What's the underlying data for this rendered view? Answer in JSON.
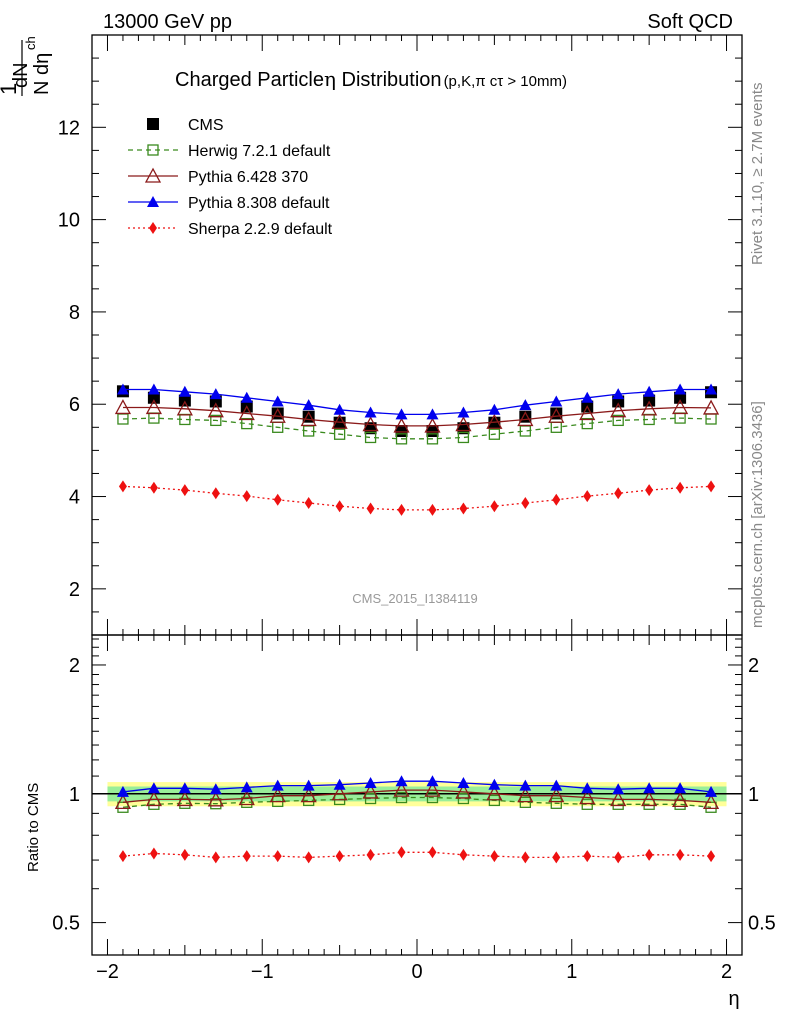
{
  "header": {
    "left": "13000 GeV pp",
    "right": "Soft QCD"
  },
  "side": {
    "rivet": "Rivet 3.1.10, ≥ 2.7M events",
    "mcplots": "mcplots.cern.ch [arXiv:1306.3436]"
  },
  "chart_data": [
    {
      "type": "line",
      "title_main": "Charged Particle",
      "title_eta": "η",
      "title_dist": " Distribution",
      "title_sub": "(p,K,π cτ > 10mm)",
      "ylabel_top": "1",
      "ylabel_dn": "dN",
      "ylabel_ch": "ch",
      "ylabel_bottom": "N dη",
      "xlabel": "η",
      "watermark": "CMS_2015_I1384119",
      "xlim": [
        -2.1,
        2.1
      ],
      "ylim": [
        1.0,
        14.0
      ],
      "yticks": [
        2,
        4,
        6,
        8,
        10,
        12
      ],
      "x": [
        -1.9,
        -1.7,
        -1.5,
        -1.3,
        -1.1,
        -0.9,
        -0.7,
        -0.5,
        -0.3,
        -0.1,
        0.1,
        0.3,
        0.5,
        0.7,
        0.9,
        1.1,
        1.3,
        1.5,
        1.7,
        1.9
      ],
      "series": [
        {
          "name": "CMS",
          "color": "#000000",
          "marker": "square-filled",
          "values": [
            6.28,
            6.14,
            6.08,
            6.06,
            5.95,
            5.8,
            5.73,
            5.6,
            5.48,
            5.42,
            5.42,
            5.48,
            5.6,
            5.73,
            5.8,
            5.95,
            6.06,
            6.08,
            6.14,
            6.26
          ]
        },
        {
          "name": "Herwig 7.2.1 default",
          "color": "#3a8a1e",
          "marker": "square-open",
          "dash": "5,4",
          "values": [
            5.68,
            5.7,
            5.67,
            5.65,
            5.58,
            5.5,
            5.42,
            5.35,
            5.28,
            5.25,
            5.25,
            5.28,
            5.35,
            5.42,
            5.5,
            5.58,
            5.65,
            5.67,
            5.7,
            5.68
          ]
        },
        {
          "name": "Pythia 6.428 370",
          "color": "#8b1a1a",
          "marker": "triangle-open",
          "values": [
            5.93,
            5.93,
            5.9,
            5.86,
            5.8,
            5.74,
            5.67,
            5.61,
            5.56,
            5.53,
            5.53,
            5.56,
            5.61,
            5.67,
            5.74,
            5.8,
            5.86,
            5.9,
            5.93,
            5.92
          ]
        },
        {
          "name": "Pythia 8.308 default",
          "color": "#0000ee",
          "marker": "triangle-filled",
          "values": [
            6.32,
            6.32,
            6.27,
            6.22,
            6.14,
            6.06,
            5.98,
            5.88,
            5.82,
            5.78,
            5.78,
            5.82,
            5.88,
            5.98,
            6.06,
            6.14,
            6.22,
            6.27,
            6.32,
            6.32
          ]
        },
        {
          "name": "Sherpa 2.2.9 default",
          "color": "#ee1111",
          "marker": "diamond-filled",
          "dash": "2,3",
          "values": [
            4.22,
            4.19,
            4.14,
            4.07,
            4.01,
            3.93,
            3.86,
            3.79,
            3.74,
            3.71,
            3.71,
            3.74,
            3.79,
            3.86,
            3.93,
            4.01,
            4.07,
            4.14,
            4.19,
            4.22
          ]
        }
      ]
    },
    {
      "type": "line",
      "ylabel": "Ratio to CMS",
      "xlabel": "η",
      "xlim": [
        -2.1,
        2.1
      ],
      "ylim": [
        0.42,
        2.35
      ],
      "yscale": "log",
      "yticks": [
        0.5,
        1,
        2
      ],
      "xticks": [
        -2,
        -1,
        0,
        1,
        2
      ],
      "xtick_labels": [
        "−2",
        "−1",
        "0",
        "1",
        "2"
      ],
      "band": {
        "green_half_width": 0.04,
        "yellow_half_width": 0.065
      },
      "x": [
        -1.9,
        -1.7,
        -1.5,
        -1.3,
        -1.1,
        -0.9,
        -0.7,
        -0.5,
        -0.3,
        -0.1,
        0.1,
        0.3,
        0.5,
        0.7,
        0.9,
        1.1,
        1.3,
        1.5,
        1.7,
        1.9
      ],
      "series": [
        {
          "name": "Herwig 7.2.1 default",
          "color": "#3a8a1e",
          "marker": "square-open",
          "dash": "5,4",
          "values": [
            0.93,
            0.945,
            0.95,
            0.948,
            0.955,
            0.96,
            0.965,
            0.97,
            0.975,
            0.98,
            0.98,
            0.975,
            0.965,
            0.955,
            0.95,
            0.945,
            0.945,
            0.945,
            0.945,
            0.93
          ]
        },
        {
          "name": "Pythia 6.428 370",
          "color": "#8b1a1a",
          "marker": "triangle-open",
          "values": [
            0.955,
            0.97,
            0.97,
            0.968,
            0.975,
            0.99,
            0.99,
            1.0,
            1.01,
            1.02,
            1.02,
            1.01,
            1.0,
            0.99,
            0.99,
            0.98,
            0.97,
            0.97,
            0.965,
            0.955
          ]
        },
        {
          "name": "Pythia 8.308 default",
          "color": "#0000ee",
          "marker": "triangle-filled",
          "values": [
            1.01,
            1.03,
            1.03,
            1.025,
            1.035,
            1.045,
            1.045,
            1.05,
            1.06,
            1.07,
            1.07,
            1.06,
            1.05,
            1.045,
            1.045,
            1.03,
            1.025,
            1.03,
            1.03,
            1.01
          ]
        },
        {
          "name": "Sherpa 2.2.9 default",
          "color": "#ee1111",
          "marker": "diamond-filled",
          "dash": "2,3",
          "values": [
            0.715,
            0.725,
            0.72,
            0.71,
            0.715,
            0.715,
            0.71,
            0.715,
            0.72,
            0.73,
            0.73,
            0.72,
            0.715,
            0.71,
            0.71,
            0.715,
            0.71,
            0.72,
            0.72,
            0.715
          ]
        }
      ]
    }
  ]
}
